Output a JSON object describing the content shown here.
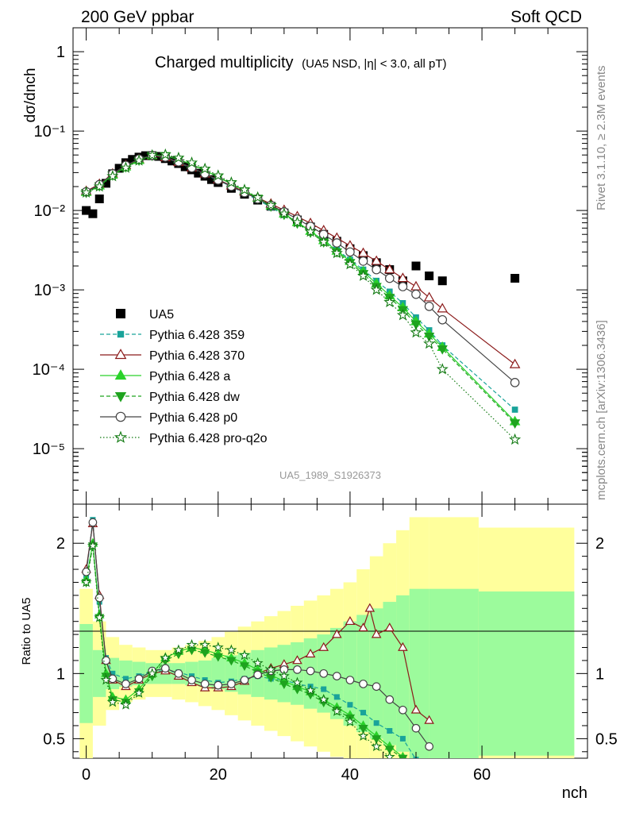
{
  "header": {
    "energy_label": "200 GeV ppbar",
    "process_label": "Soft QCD",
    "plot_title": "Charged multiplicity",
    "plot_subtitle": "(UA5 NSD, |η| < 3.0, all pT)",
    "analysis_id": "UA5_1989_S1926373",
    "rivet_label": "Rivet 3.1.10, ≥ 2.3M events",
    "mcplots_label": "mcplots.cern.ch [arXiv:1306.3436]"
  },
  "chart_data": [
    {
      "type": "scatter",
      "panel": "main",
      "ylabel": "dσ/dnch",
      "yscale": "log",
      "ylim": [
        2e-06,
        2.0
      ],
      "xlim": [
        -2,
        76
      ],
      "y_ticks": [
        "1",
        "10⁻¹",
        "10⁻²",
        "10⁻³",
        "10⁻⁴",
        "10⁻⁵"
      ],
      "legend_position": "lower-left",
      "series": [
        {
          "name": "UA5",
          "color": "#000000",
          "marker": "square",
          "x": [
            0,
            1,
            2,
            3,
            4,
            5,
            6,
            7,
            8,
            9,
            10,
            11,
            12,
            13,
            14,
            15,
            16,
            17,
            18,
            19,
            20,
            22,
            24,
            26,
            28,
            30,
            32,
            34,
            36,
            38,
            40,
            42,
            44,
            46,
            48,
            50,
            52,
            54,
            65
          ],
          "y": [
            0.01,
            0.0091,
            0.014,
            0.022,
            0.029,
            0.034,
            0.04,
            0.044,
            0.047,
            0.049,
            0.049,
            0.048,
            0.045,
            0.042,
            0.039,
            0.0355,
            0.0325,
            0.0295,
            0.027,
            0.0245,
            0.0225,
            0.019,
            0.016,
            0.0135,
            0.0113,
            0.0093,
            0.0076,
            0.0062,
            0.005,
            0.0041,
            0.0033,
            0.0027,
            0.0022,
            0.0018,
            0.0013,
            0.002,
            0.0015,
            0.0013,
            0.0014
          ]
        },
        {
          "name": "Pythia 6.428 359",
          "color": "#19a39a",
          "marker": "small-square",
          "dash": "5,3",
          "x": [
            0,
            2,
            4,
            6,
            8,
            10,
            12,
            14,
            16,
            18,
            20,
            22,
            24,
            26,
            28,
            30,
            32,
            34,
            36,
            38,
            40,
            42,
            44,
            46,
            48,
            50,
            52,
            54,
            65
          ],
          "y": [
            0.017,
            0.021,
            0.029,
            0.037,
            0.044,
            0.049,
            0.046,
            0.04,
            0.034,
            0.0285,
            0.024,
            0.02,
            0.0165,
            0.0136,
            0.011,
            0.0088,
            0.007,
            0.0055,
            0.0042,
            0.0032,
            0.0024,
            0.0018,
            0.0013,
            0.00095,
            0.00068,
            0.00045,
            0.00031,
            0.0002,
            3.1e-05
          ]
        },
        {
          "name": "Pythia 6.428 370",
          "color": "#8b1a1a",
          "marker": "open-triangle",
          "dash": "",
          "x": [
            0,
            2,
            4,
            6,
            8,
            10,
            12,
            14,
            16,
            18,
            20,
            22,
            24,
            26,
            28,
            30,
            32,
            34,
            36,
            38,
            40,
            42,
            44,
            46,
            48,
            50,
            52,
            54,
            65
          ],
          "y": [
            0.0175,
            0.0215,
            0.029,
            0.037,
            0.044,
            0.049,
            0.0465,
            0.0405,
            0.0345,
            0.029,
            0.0245,
            0.0205,
            0.0172,
            0.0145,
            0.0121,
            0.0101,
            0.0084,
            0.0069,
            0.0056,
            0.0045,
            0.0036,
            0.0029,
            0.0023,
            0.0018,
            0.0014,
            0.0011,
            0.0008,
            0.00058,
            0.000115
          ]
        },
        {
          "name": "Pythia 6.428 a",
          "color": "#2ad22a",
          "marker": "triangle",
          "dash": "",
          "x": [
            0,
            2,
            4,
            6,
            8,
            10,
            12,
            14,
            16,
            18,
            20,
            22,
            24,
            26,
            28,
            30,
            32,
            34,
            36,
            38,
            40,
            42,
            44,
            46,
            48,
            50,
            52,
            54,
            65
          ],
          "y": [
            0.017,
            0.0205,
            0.028,
            0.0355,
            0.043,
            0.0495,
            0.049,
            0.044,
            0.038,
            0.032,
            0.0265,
            0.0218,
            0.0178,
            0.0144,
            0.0115,
            0.0091,
            0.0071,
            0.0055,
            0.0042,
            0.0031,
            0.0023,
            0.0017,
            0.0012,
            0.00085,
            0.0006,
            0.0004,
            0.00028,
            0.00019,
            2.2e-05
          ]
        },
        {
          "name": "Pythia 6.428 dw",
          "color": "#1fa31f",
          "marker": "down-triangle",
          "dash": "5,3",
          "x": [
            0,
            2,
            4,
            6,
            8,
            10,
            12,
            14,
            16,
            18,
            20,
            22,
            24,
            26,
            28,
            30,
            32,
            34,
            36,
            38,
            40,
            42,
            44,
            46,
            48,
            50,
            52,
            54,
            65
          ],
          "y": [
            0.0168,
            0.0203,
            0.0278,
            0.0352,
            0.0428,
            0.0492,
            0.0488,
            0.0438,
            0.0378,
            0.0318,
            0.0263,
            0.0216,
            0.0176,
            0.0142,
            0.0113,
            0.0089,
            0.0069,
            0.0053,
            0.004,
            0.003,
            0.0022,
            0.0016,
            0.0011,
            0.0008,
            0.00056,
            0.00037,
            0.00026,
            0.00018,
            2.1e-05
          ]
        },
        {
          "name": "Pythia 6.428 p0",
          "color": "#444444",
          "marker": "open-circle",
          "dash": "",
          "x": [
            0,
            2,
            4,
            6,
            8,
            10,
            12,
            14,
            16,
            18,
            20,
            22,
            24,
            26,
            28,
            30,
            32,
            34,
            36,
            38,
            40,
            42,
            44,
            46,
            48,
            50,
            52,
            54,
            65
          ],
          "y": [
            0.0172,
            0.0212,
            0.029,
            0.037,
            0.0445,
            0.0495,
            0.047,
            0.041,
            0.0345,
            0.029,
            0.0242,
            0.0202,
            0.0168,
            0.014,
            0.0116,
            0.0096,
            0.0078,
            0.0063,
            0.005,
            0.0039,
            0.003,
            0.0023,
            0.0018,
            0.0014,
            0.0011,
            0.00088,
            0.00062,
            0.00042,
            6.8e-05
          ]
        },
        {
          "name": "Pythia 6.428 pro-q2o",
          "color": "#127a12",
          "marker": "open-star",
          "dash": "1.5,2.5",
          "x": [
            0,
            2,
            4,
            6,
            8,
            10,
            12,
            14,
            16,
            18,
            20,
            22,
            24,
            26,
            28,
            30,
            32,
            34,
            36,
            38,
            40,
            42,
            44,
            46,
            48,
            50,
            52,
            54,
            65
          ],
          "y": [
            0.0168,
            0.02,
            0.027,
            0.0345,
            0.0425,
            0.0495,
            0.0505,
            0.046,
            0.04,
            0.0335,
            0.0275,
            0.0225,
            0.0182,
            0.0146,
            0.0116,
            0.0091,
            0.0071,
            0.0054,
            0.004,
            0.0029,
            0.0021,
            0.0015,
            0.001,
            0.0007,
            0.00048,
            0.00029,
            0.00021,
            0.0001,
            1.3e-05
          ]
        }
      ]
    },
    {
      "type": "line",
      "panel": "ratio",
      "ylabel": "Ratio to UA5",
      "xlabel": "nch",
      "ylim": [
        0.35,
        2.3
      ],
      "xlim": [
        -2,
        76
      ],
      "x_ticks": [
        "0",
        "20",
        "40",
        "60"
      ],
      "y_ticks": [
        "0.5",
        "1",
        "2"
      ],
      "reference_line": 1,
      "band_inner_color": "#9cfb9c",
      "band_outer_color": "#ffff9c",
      "bands": {
        "x": [
          0,
          2,
          4,
          6,
          8,
          10,
          12,
          14,
          16,
          18,
          20,
          22,
          24,
          26,
          28,
          30,
          32,
          34,
          36,
          38,
          40,
          42,
          44,
          46,
          48,
          50,
          54,
          65
        ],
        "inner_lo": [
          0.62,
          0.82,
          0.88,
          0.9,
          0.91,
          0.92,
          0.92,
          0.92,
          0.91,
          0.9,
          0.88,
          0.86,
          0.84,
          0.82,
          0.8,
          0.78,
          0.76,
          0.73,
          0.7,
          0.65,
          0.6,
          0.55,
          0.5,
          0.45,
          0.4,
          0.35,
          0.35,
          0.37
        ],
        "inner_hi": [
          1.38,
          1.18,
          1.12,
          1.1,
          1.09,
          1.08,
          1.08,
          1.08,
          1.09,
          1.1,
          1.12,
          1.14,
          1.16,
          1.18,
          1.2,
          1.22,
          1.24,
          1.27,
          1.3,
          1.35,
          1.4,
          1.45,
          1.5,
          1.55,
          1.6,
          1.65,
          1.65,
          1.63
        ],
        "outer_lo": [
          0.35,
          0.6,
          0.72,
          0.78,
          0.8,
          0.82,
          0.82,
          0.8,
          0.78,
          0.75,
          0.72,
          0.68,
          0.64,
          0.6,
          0.56,
          0.52,
          0.48,
          0.44,
          0.4,
          0.36,
          0.35,
          0.35,
          0.35,
          0.35,
          0.35,
          0.35,
          0.35,
          0.35
        ],
        "outer_hi": [
          1.65,
          1.4,
          1.28,
          1.22,
          1.2,
          1.18,
          1.18,
          1.2,
          1.22,
          1.25,
          1.28,
          1.32,
          1.36,
          1.4,
          1.44,
          1.48,
          1.52,
          1.56,
          1.6,
          1.65,
          1.7,
          1.8,
          1.9,
          2.0,
          2.1,
          2.2,
          2.2,
          2.12
        ]
      },
      "series": [
        {
          "name": "Pythia 6.428 359",
          "x": [
            0,
            1,
            2,
            3,
            4,
            6,
            8,
            10,
            12,
            14,
            16,
            18,
            20,
            22,
            24,
            26,
            28,
            30,
            32,
            34,
            36,
            38,
            40,
            42,
            44,
            46,
            48,
            50
          ],
          "y": [
            1.75,
            2.18,
            1.55,
            1.12,
            1.0,
            0.96,
            0.98,
            1.02,
            1.02,
            1.01,
            0.98,
            0.95,
            0.93,
            0.94,
            0.96,
            0.98,
            0.96,
            0.95,
            0.92,
            0.9,
            0.88,
            0.82,
            0.76,
            0.7,
            0.62,
            0.56,
            0.5,
            0.34
          ]
        },
        {
          "name": "Pythia 6.428 370",
          "x": [
            0,
            1,
            2,
            3,
            4,
            6,
            8,
            10,
            12,
            14,
            16,
            18,
            20,
            22,
            24,
            26,
            28,
            30,
            32,
            34,
            36,
            38,
            40,
            42,
            43,
            44,
            46,
            48,
            50,
            52
          ],
          "y": [
            1.8,
            2.15,
            1.6,
            1.1,
            0.95,
            0.9,
            0.95,
            1.0,
            1.02,
            0.98,
            0.93,
            0.89,
            0.89,
            0.9,
            0.94,
            1.0,
            1.04,
            1.07,
            1.1,
            1.15,
            1.2,
            1.3,
            1.4,
            1.35,
            1.5,
            1.3,
            1.35,
            1.2,
            0.72,
            0.64
          ]
        },
        {
          "name": "Pythia 6.428 a",
          "x": [
            0,
            1,
            2,
            3,
            4,
            6,
            8,
            10,
            12,
            14,
            16,
            18,
            20,
            22,
            24,
            26,
            28,
            30,
            32,
            34,
            36,
            38,
            40,
            42,
            44,
            46,
            48
          ],
          "y": [
            1.72,
            2.0,
            1.45,
            1.0,
            0.82,
            0.8,
            0.88,
            1.0,
            1.12,
            1.17,
            1.2,
            1.18,
            1.15,
            1.12,
            1.08,
            1.03,
            0.99,
            0.94,
            0.9,
            0.86,
            0.8,
            0.74,
            0.68,
            0.6,
            0.52,
            0.44,
            0.36
          ]
        },
        {
          "name": "Pythia 6.428 dw",
          "x": [
            0,
            1,
            2,
            3,
            4,
            6,
            8,
            10,
            12,
            14,
            16,
            18,
            20,
            22,
            24,
            26,
            28,
            30,
            32,
            34,
            36,
            38,
            40,
            42,
            44,
            46,
            48
          ],
          "y": [
            1.7,
            1.98,
            1.43,
            0.98,
            0.8,
            0.78,
            0.86,
            0.98,
            1.1,
            1.15,
            1.18,
            1.16,
            1.13,
            1.1,
            1.06,
            1.01,
            0.97,
            0.92,
            0.88,
            0.84,
            0.78,
            0.72,
            0.66,
            0.58,
            0.5,
            0.42,
            0.35
          ]
        },
        {
          "name": "Pythia 6.428 p0",
          "x": [
            0,
            1,
            2,
            3,
            4,
            6,
            8,
            10,
            12,
            14,
            16,
            18,
            20,
            22,
            24,
            26,
            28,
            30,
            32,
            34,
            36,
            38,
            40,
            42,
            44,
            46,
            48,
            50,
            52
          ],
          "y": [
            1.78,
            2.16,
            1.58,
            1.1,
            0.96,
            0.92,
            0.96,
            1.02,
            1.04,
            1.0,
            0.95,
            0.92,
            0.91,
            0.92,
            0.95,
            0.99,
            1.02,
            1.03,
            1.03,
            1.02,
            1.0,
            0.98,
            0.95,
            0.92,
            0.9,
            0.8,
            0.72,
            0.58,
            0.44
          ]
        },
        {
          "name": "Pythia 6.428 pro-q2o",
          "x": [
            0,
            1,
            2,
            3,
            4,
            6,
            8,
            10,
            12,
            14,
            16,
            18,
            20,
            22,
            24,
            26,
            28,
            30,
            32,
            34,
            36,
            38,
            40,
            42,
            44,
            46
          ],
          "y": [
            1.7,
            1.98,
            1.43,
            0.95,
            0.78,
            0.76,
            0.85,
            1.0,
            1.12,
            1.18,
            1.22,
            1.22,
            1.2,
            1.18,
            1.14,
            1.08,
            1.03,
            0.98,
            0.93,
            0.87,
            0.8,
            0.71,
            0.63,
            0.52,
            0.44,
            0.36
          ]
        }
      ]
    }
  ]
}
